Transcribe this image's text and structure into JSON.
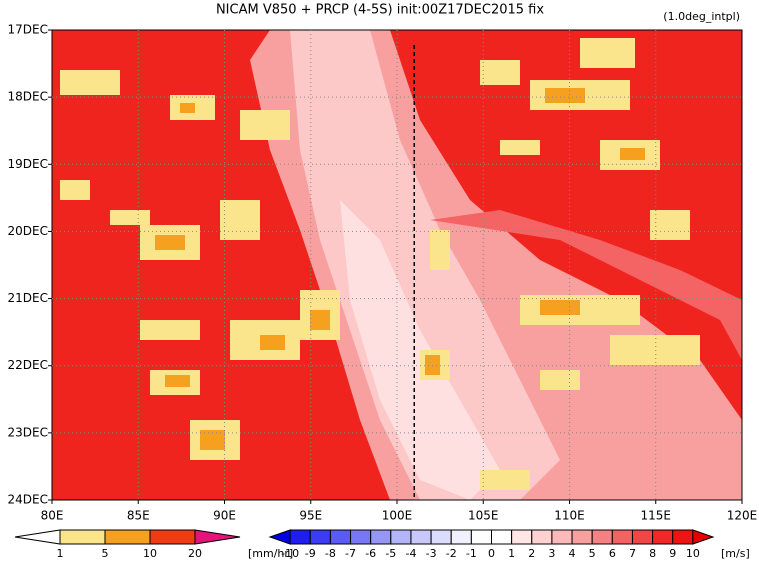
{
  "chart_data": {
    "type": "heatmap",
    "title": "NICAM  V850 + PRCP (4-5S) init:00Z17DEC2015 fix",
    "subtitle": "(1.0deg_intpl)",
    "xlim": [
      80,
      120
    ],
    "xticks": [
      {
        "value": 80,
        "label": "80E"
      },
      {
        "value": 85,
        "label": "85E"
      },
      {
        "value": 90,
        "label": "90E"
      },
      {
        "value": 95,
        "label": "95E"
      },
      {
        "value": 100,
        "label": "100E"
      },
      {
        "value": 105,
        "label": "105E"
      },
      {
        "value": 110,
        "label": "110E"
      },
      {
        "value": 115,
        "label": "115E"
      },
      {
        "value": 120,
        "label": "120E"
      }
    ],
    "y": [
      "17DEC",
      "18DEC",
      "19DEC",
      "20DEC",
      "21DEC",
      "22DEC",
      "23DEC",
      "24DEC"
    ],
    "reference_line_x": 101,
    "precip_colorbar": {
      "unit": "[mm/hr]",
      "levels": [
        1,
        5,
        10,
        20
      ],
      "colors": [
        "#ffffff",
        "#fae48c",
        "#f5a01e",
        "#f03c14",
        "#e6147a"
      ]
    },
    "wind_colorbar": {
      "unit": "[m/s]",
      "levels": [
        -10,
        -9,
        -8,
        -7,
        -6,
        -5,
        -4,
        -3,
        -2,
        -1,
        0,
        1,
        2,
        3,
        4,
        5,
        6,
        7,
        8,
        9,
        10
      ],
      "colors": [
        "#0000e6",
        "#1e1ef0",
        "#3c3cf5",
        "#5a5af5",
        "#7878f5",
        "#9696f5",
        "#b4b4f8",
        "#c8c8fa",
        "#dcdcfc",
        "#f0f0ff",
        "#ffffff",
        "#ffffff",
        "#ffe6e6",
        "#ffd2d2",
        "#fcb9b9",
        "#f8a0a0",
        "#f58282",
        "#f26464",
        "#f04646",
        "#f02828",
        "#ee1414",
        "#e60000"
      ]
    }
  }
}
